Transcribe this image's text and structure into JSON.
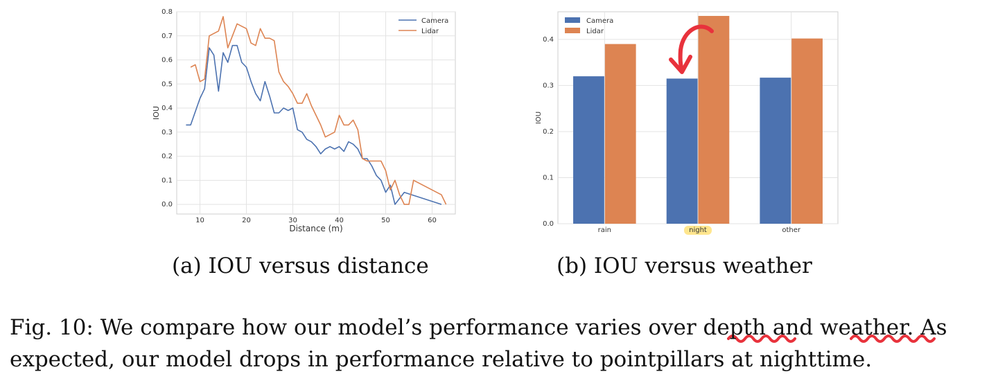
{
  "chart_data": [
    {
      "type": "line",
      "caption": "(a) IOU versus distance",
      "xlabel": "Distance (m)",
      "ylabel": "IOU",
      "xlim": [
        5,
        65
      ],
      "ylim": [
        -0.04,
        0.8
      ],
      "xticks": [
        "10",
        "20",
        "30",
        "40",
        "50",
        "60"
      ],
      "yticks": [
        "0.0",
        "0.1",
        "0.2",
        "0.3",
        "0.4",
        "0.5",
        "0.6",
        "0.7",
        "0.8"
      ],
      "grid": true,
      "legend": "top-right",
      "series": [
        {
          "name": "Camera",
          "color": "#4c72b0",
          "points": [
            [
              7,
              0.33
            ],
            [
              8,
              0.33
            ],
            [
              10,
              0.44
            ],
            [
              11,
              0.48
            ],
            [
              12,
              0.65
            ],
            [
              13,
              0.62
            ],
            [
              14,
              0.47
            ],
            [
              15,
              0.63
            ],
            [
              16,
              0.59
            ],
            [
              17,
              0.66
            ],
            [
              18,
              0.66
            ],
            [
              19,
              0.59
            ],
            [
              20,
              0.57
            ],
            [
              21,
              0.51
            ],
            [
              22,
              0.46
            ],
            [
              23,
              0.43
            ],
            [
              24,
              0.51
            ],
            [
              25,
              0.45
            ],
            [
              26,
              0.38
            ],
            [
              27,
              0.38
            ],
            [
              28,
              0.4
            ],
            [
              29,
              0.39
            ],
            [
              30,
              0.4
            ],
            [
              31,
              0.31
            ],
            [
              32,
              0.3
            ],
            [
              33,
              0.27
            ],
            [
              34,
              0.26
            ],
            [
              35,
              0.24
            ],
            [
              36,
              0.21
            ],
            [
              37,
              0.23
            ],
            [
              38,
              0.24
            ],
            [
              39,
              0.23
            ],
            [
              40,
              0.24
            ],
            [
              41,
              0.22
            ],
            [
              42,
              0.26
            ],
            [
              43,
              0.25
            ],
            [
              44,
              0.23
            ],
            [
              45,
              0.19
            ],
            [
              46,
              0.19
            ],
            [
              47,
              0.16
            ],
            [
              48,
              0.12
            ],
            [
              49,
              0.1
            ],
            [
              50,
              0.05
            ],
            [
              51,
              0.08
            ],
            [
              52,
              0.0
            ],
            [
              54,
              0.05
            ],
            [
              62,
              0.0
            ]
          ]
        },
        {
          "name": "Lidar",
          "color": "#dd8452",
          "points": [
            [
              8,
              0.57
            ],
            [
              9,
              0.58
            ],
            [
              10,
              0.51
            ],
            [
              11,
              0.52
            ],
            [
              12,
              0.7
            ],
            [
              13,
              0.71
            ],
            [
              14,
              0.72
            ],
            [
              15,
              0.78
            ],
            [
              16,
              0.65
            ],
            [
              17,
              0.7
            ],
            [
              18,
              0.75
            ],
            [
              19,
              0.74
            ],
            [
              20,
              0.73
            ],
            [
              21,
              0.67
            ],
            [
              22,
              0.66
            ],
            [
              23,
              0.73
            ],
            [
              24,
              0.69
            ],
            [
              25,
              0.69
            ],
            [
              26,
              0.68
            ],
            [
              27,
              0.55
            ],
            [
              28,
              0.51
            ],
            [
              29,
              0.49
            ],
            [
              30,
              0.46
            ],
            [
              31,
              0.42
            ],
            [
              32,
              0.42
            ],
            [
              33,
              0.46
            ],
            [
              34,
              0.41
            ],
            [
              35,
              0.37
            ],
            [
              36,
              0.33
            ],
            [
              37,
              0.28
            ],
            [
              38,
              0.29
            ],
            [
              39,
              0.3
            ],
            [
              40,
              0.37
            ],
            [
              41,
              0.33
            ],
            [
              42,
              0.33
            ],
            [
              43,
              0.35
            ],
            [
              44,
              0.31
            ],
            [
              45,
              0.19
            ],
            [
              46,
              0.18
            ],
            [
              47,
              0.18
            ],
            [
              48,
              0.18
            ],
            [
              49,
              0.18
            ],
            [
              50,
              0.14
            ],
            [
              51,
              0.06
            ],
            [
              52,
              0.1
            ],
            [
              53,
              0.04
            ],
            [
              54,
              0.0
            ],
            [
              55,
              0.0
            ],
            [
              56,
              0.1
            ],
            [
              62,
              0.04
            ],
            [
              63,
              0.0
            ]
          ]
        }
      ]
    },
    {
      "type": "bar",
      "caption": "(b) IOU versus weather",
      "xlabel": "",
      "ylabel": "IOU",
      "ylim": [
        0,
        0.46
      ],
      "yticks": [
        "0.0",
        "0.1",
        "0.2",
        "0.3",
        "0.4"
      ],
      "categories": [
        "rain",
        "night",
        "other"
      ],
      "grid": true,
      "legend": "top-left",
      "highlighted_category": "night",
      "highlight_color": "#ffe27a",
      "annotation_arrow_color": "#e8323c",
      "series": [
        {
          "name": "Camera",
          "color": "#4c72b0",
          "values": [
            0.32,
            0.315,
            0.317
          ]
        },
        {
          "name": "Lidar",
          "color": "#dd8452",
          "values": [
            0.39,
            0.451,
            0.402
          ]
        }
      ]
    }
  ],
  "figure_caption": {
    "line1_a": "Fig. 10: We compare how our model’s performance varies over ",
    "word_depth": "depth",
    "line1_b": " and ",
    "word_weather": "weather",
    "line1_c": ". As",
    "line2": "expected, our model drops in performance relative to pointpillars at nighttime.",
    "squiggle_color": "#e8323c"
  }
}
